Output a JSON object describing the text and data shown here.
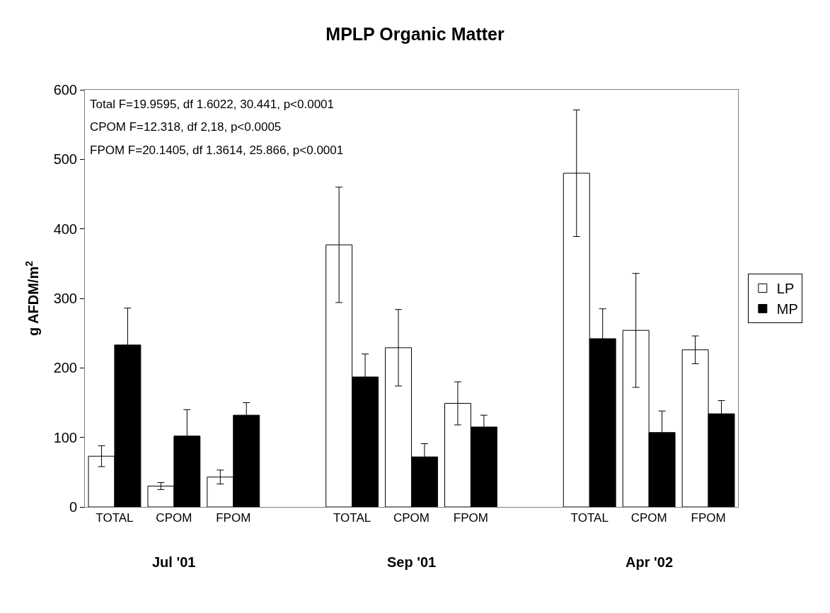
{
  "chart_data": {
    "type": "bar",
    "title": "MPLP Organic Matter",
    "ylabel": "g AFDM/m$^{2}$",
    "categories": [
      "TOTAL",
      "CPOM",
      "FPOM",
      null,
      "TOTAL",
      "CPOM",
      "FPOM",
      null,
      "TOTAL",
      "CPOM",
      "FPOM"
    ],
    "series": [
      {
        "name": "LP",
        "color": "#ffffff",
        "values": [
          73,
          30,
          43,
          null,
          377,
          229,
          149,
          null,
          480,
          254,
          226
        ],
        "errors": [
          15,
          5,
          10,
          null,
          83,
          55,
          31,
          null,
          91,
          82,
          20
        ]
      },
      {
        "name": "MP",
        "color": "#000000",
        "values": [
          233,
          102,
          132,
          null,
          187,
          72,
          115,
          null,
          242,
          107,
          134
        ],
        "errors": [
          53,
          38,
          18,
          null,
          33,
          19,
          17,
          null,
          43,
          31,
          19
        ]
      }
    ],
    "ylim": [
      0,
      600
    ],
    "yticks": [
      0,
      100,
      200,
      300,
      400,
      500,
      600
    ],
    "legend": "right",
    "annotations": [
      "Total F=19.9595, df 1.6022, 30.441, p<0.0001",
      "CPOM F=12.318, df 2,18, p<0.0005",
      "FPOM F=20.1405, df 1.3614, 25.866, p<0.0001",
      "Jul '01",
      "Sep '01",
      "Apr '02"
    ]
  }
}
